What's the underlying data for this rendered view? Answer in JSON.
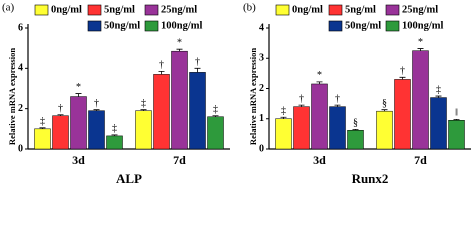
{
  "chart_data": [
    {
      "type": "bar",
      "panel_label": "(a)",
      "title": "ALP",
      "ylabel": "Relative mRNA expression",
      "categories": [
        "3d",
        "7d"
      ],
      "series": [
        {
          "name": "0ng/ml",
          "color": "#ffff33",
          "values": [
            1.0,
            1.9
          ],
          "errors": [
            0.05,
            0.05
          ],
          "annotations": [
            "‡",
            "‡"
          ]
        },
        {
          "name": "5ng/ml",
          "color": "#ff3333",
          "values": [
            1.65,
            3.7
          ],
          "errors": [
            0.05,
            0.15
          ],
          "annotations": [
            "†",
            "†"
          ]
        },
        {
          "name": "25ng/ml",
          "color": "#993399",
          "values": [
            2.6,
            4.85
          ],
          "errors": [
            0.15,
            0.1
          ],
          "annotations": [
            "*",
            "*"
          ]
        },
        {
          "name": "50ng/ml",
          "color": "#0a3590",
          "values": [
            1.9,
            3.8
          ],
          "errors": [
            0.05,
            0.2
          ],
          "annotations": [
            "†",
            "†"
          ]
        },
        {
          "name": "100ng/ml",
          "color": "#2e9a3c",
          "values": [
            0.65,
            1.6
          ],
          "errors": [
            0.05,
            0.05
          ],
          "annotations": [
            "‡",
            "‡"
          ]
        }
      ],
      "ylim": [
        0,
        6
      ],
      "yticks": [
        0,
        2,
        4,
        6
      ]
    },
    {
      "type": "bar",
      "panel_label": "(b)",
      "title": "Runx2",
      "ylabel": "Relative mRNA expression",
      "categories": [
        "3d",
        "7d"
      ],
      "series": [
        {
          "name": "0ng/ml",
          "color": "#ffff33",
          "values": [
            1.0,
            1.25
          ],
          "errors": [
            0.05,
            0.05
          ],
          "annotations": [
            "‡",
            "§"
          ]
        },
        {
          "name": "5ng/ml",
          "color": "#ff3333",
          "values": [
            1.4,
            2.3
          ],
          "errors": [
            0.05,
            0.07
          ],
          "annotations": [
            "†",
            "†"
          ]
        },
        {
          "name": "25ng/ml",
          "color": "#993399",
          "values": [
            2.15,
            3.25
          ],
          "errors": [
            0.07,
            0.07
          ],
          "annotations": [
            "*",
            "*"
          ]
        },
        {
          "name": "50ng/ml",
          "color": "#0a3590",
          "values": [
            1.4,
            1.7
          ],
          "errors": [
            0.05,
            0.05
          ],
          "annotations": [
            "†",
            "‡"
          ]
        },
        {
          "name": "100ng/ml",
          "color": "#2e9a3c",
          "values": [
            0.62,
            0.95
          ],
          "errors": [
            0.03,
            0.03
          ],
          "annotations": [
            "§",
            "‖"
          ]
        }
      ],
      "ylim": [
        0,
        4
      ],
      "yticks": [
        0,
        1,
        2,
        3,
        4
      ]
    }
  ]
}
